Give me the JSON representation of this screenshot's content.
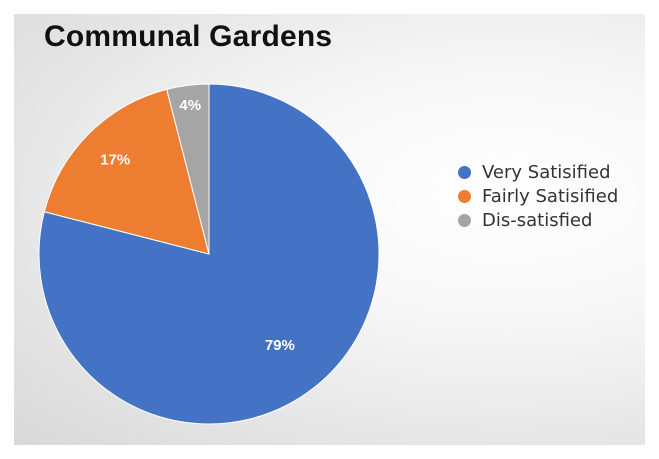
{
  "chart_data": {
    "type": "pie",
    "title": "Communal Gardens",
    "slices": [
      {
        "label": "Very Satisified",
        "value": 79,
        "display": "79%",
        "color": "#4472c4"
      },
      {
        "label": "Fairly Satisified",
        "value": 17,
        "display": "17%",
        "color": "#ed7d31"
      },
      {
        "label": "Dis-satisfied",
        "value": 4,
        "display": "4%",
        "color": "#a5a5a5"
      }
    ],
    "start": "12 o'clock",
    "direction": "clockwise",
    "legend_position": "right"
  }
}
